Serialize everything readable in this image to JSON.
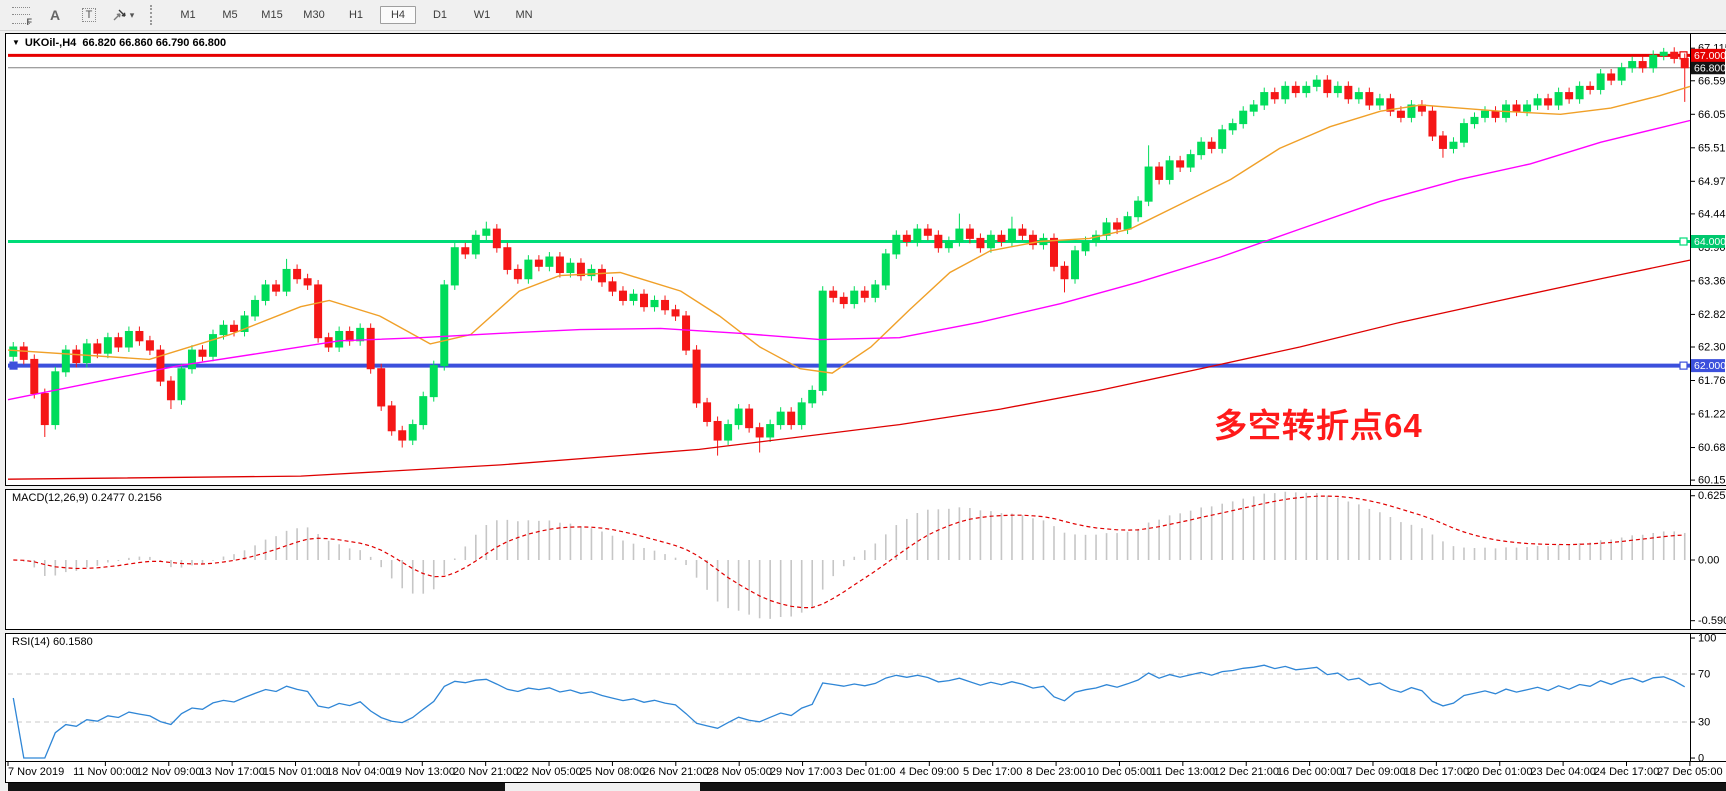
{
  "window": {
    "title": "UKOil-,H4  66.820 66.860 66.790 66.800",
    "dropdown_glyph": "▼"
  },
  "toolbar": {
    "tools": [
      {
        "id": "fibonacci-retracement",
        "glyph": "F"
      },
      {
        "id": "text-label",
        "glyph": "A"
      },
      {
        "id": "text",
        "glyph": "T"
      },
      {
        "id": "arrows",
        "glyph": "▾"
      }
    ],
    "timeframes": [
      "M1",
      "M5",
      "M15",
      "M30",
      "H1",
      "H4",
      "D1",
      "W1",
      "MN"
    ],
    "active_timeframe": "H4"
  },
  "indicators": {
    "macd": {
      "label": "MACD(12,26,9) 0.2477 0.2156"
    },
    "rsi": {
      "label": "RSI(14) 60.1580"
    }
  },
  "chart_data": [
    {
      "type": "candlestick",
      "symbol": "UKOil-",
      "timeframe": "H4",
      "ohlc_current": {
        "open": 66.82,
        "high": 66.86,
        "low": 66.79,
        "close": 66.8
      },
      "ylim": [
        60.06,
        67.36
      ],
      "axis_ticks": [
        "67.115",
        "66.590",
        "66.050",
        "65.510",
        "64.970",
        "64.445",
        "63.905",
        "63.365",
        "62.825",
        "62.300",
        "61.760",
        "61.220",
        "60.680",
        "60.155"
      ],
      "x_labels": [
        "7 Nov 2019",
        "11 Nov 00:00",
        "12 Nov 09:00",
        "13 Nov 17:00",
        "15 Nov 01:00",
        "18 Nov 04:00",
        "19 Nov 13:00",
        "20 Nov 21:00",
        "22 Nov 05:00",
        "25 Nov 08:00",
        "26 Nov 21:00",
        "28 Nov 05:00",
        "29 Nov 17:00",
        "3 Dec 01:00",
        "4 Dec 09:00",
        "5 Dec 17:00",
        "8 Dec 23:00",
        "10 Dec 05:00",
        "11 Dec 13:00",
        "12 Dec 21:00",
        "16 Dec 00:00",
        "17 Dec 09:00",
        "18 Dec 17:00",
        "20 Dec 01:00",
        "23 Dec 04:00",
        "24 Dec 17:00",
        "27 Dec 05:00"
      ],
      "closes": [
        62.3,
        62.1,
        61.55,
        61.05,
        61.9,
        62.25,
        62.05,
        62.35,
        62.2,
        62.45,
        62.3,
        62.55,
        62.4,
        62.25,
        61.75,
        61.45,
        61.95,
        62.25,
        62.15,
        62.5,
        62.65,
        62.55,
        62.8,
        63.05,
        63.3,
        63.2,
        63.55,
        63.4,
        63.3,
        62.45,
        62.3,
        62.55,
        62.4,
        62.6,
        61.95,
        61.35,
        60.95,
        60.8,
        61.05,
        61.5,
        62.0,
        63.3,
        63.9,
        63.8,
        64.1,
        64.2,
        63.9,
        63.55,
        63.4,
        63.7,
        63.6,
        63.75,
        63.5,
        63.65,
        63.45,
        63.55,
        63.35,
        63.2,
        63.05,
        63.15,
        62.95,
        63.05,
        62.9,
        62.8,
        62.25,
        61.4,
        61.1,
        60.8,
        61.05,
        61.3,
        61.0,
        60.85,
        61.05,
        61.25,
        61.05,
        61.4,
        61.6,
        63.2,
        63.1,
        63.0,
        63.2,
        63.1,
        63.3,
        63.8,
        64.1,
        64.0,
        64.2,
        64.1,
        63.9,
        64.0,
        64.2,
        64.05,
        63.9,
        64.1,
        64.0,
        64.2,
        64.1,
        63.95,
        64.05,
        63.6,
        63.4,
        63.85,
        64.0,
        64.1,
        64.3,
        64.2,
        64.4,
        64.65,
        65.2,
        65.0,
        65.3,
        65.2,
        65.4,
        65.6,
        65.5,
        65.8,
        65.9,
        66.1,
        66.2,
        66.4,
        66.3,
        66.5,
        66.4,
        66.5,
        66.6,
        66.4,
        66.5,
        66.3,
        66.4,
        66.2,
        66.3,
        66.1,
        66.0,
        66.2,
        66.1,
        65.7,
        65.5,
        65.6,
        65.9,
        66.0,
        66.1,
        66.0,
        66.2,
        66.1,
        66.2,
        66.3,
        66.2,
        66.4,
        66.3,
        66.5,
        66.45,
        66.7,
        66.6,
        66.8,
        66.9,
        66.8,
        67.0,
        67.05,
        66.95,
        66.8
      ],
      "default_wick": 0.08,
      "wick_overrides": {
        "3": [
          null,
          60.85
        ],
        "15": [
          null,
          61.3
        ],
        "26": [
          63.72,
          null
        ],
        "37": [
          null,
          60.68
        ],
        "45": [
          64.32,
          null
        ],
        "67": [
          null,
          60.55
        ],
        "71": [
          null,
          60.6
        ],
        "90": [
          64.45,
          null
        ],
        "95": [
          64.4,
          null
        ],
        "100": [
          null,
          63.18
        ],
        "108": [
          65.55,
          null
        ],
        "124": [
          66.68,
          null
        ],
        "136": [
          null,
          65.35
        ],
        "157": [
          67.12,
          null
        ],
        "159": [
          null,
          66.25
        ]
      },
      "bull_color": "#00DC5A",
      "bear_color": "#F51717",
      "moving_averages": [
        {
          "name": "ma-fast-orange",
          "color": "#F0A028",
          "width": 1.4,
          "points": [
            [
              0,
              62.25
            ],
            [
              0.084,
              62.1
            ],
            [
              0.132,
              62.5
            ],
            [
              0.174,
              62.95
            ],
            [
              0.191,
              63.05
            ],
            [
              0.221,
              62.8
            ],
            [
              0.251,
              62.35
            ],
            [
              0.275,
              62.5
            ],
            [
              0.304,
              63.2
            ],
            [
              0.328,
              63.45
            ],
            [
              0.364,
              63.5
            ],
            [
              0.4,
              63.2
            ],
            [
              0.423,
              62.8
            ],
            [
              0.447,
              62.3
            ],
            [
              0.471,
              61.95
            ],
            [
              0.49,
              61.88
            ],
            [
              0.513,
              62.3
            ],
            [
              0.536,
              62.9
            ],
            [
              0.56,
              63.5
            ],
            [
              0.584,
              63.85
            ],
            [
              0.613,
              64.0
            ],
            [
              0.643,
              64.05
            ],
            [
              0.667,
              64.2
            ],
            [
              0.697,
              64.6
            ],
            [
              0.727,
              65.0
            ],
            [
              0.756,
              65.5
            ],
            [
              0.786,
              65.85
            ],
            [
              0.816,
              66.1
            ],
            [
              0.84,
              66.2
            ],
            [
              0.863,
              66.15
            ],
            [
              0.887,
              66.1
            ],
            [
              0.923,
              66.05
            ],
            [
              0.953,
              66.15
            ],
            [
              0.982,
              66.35
            ],
            [
              1,
              66.5
            ]
          ]
        },
        {
          "name": "ma-mid-magenta",
          "color": "#FF00FF",
          "width": 1.4,
          "points": [
            [
              0,
              61.45
            ],
            [
              0.055,
              61.75
            ],
            [
              0.102,
              62.0
            ],
            [
              0.15,
              62.2
            ],
            [
              0.197,
              62.4
            ],
            [
              0.245,
              62.45
            ],
            [
              0.293,
              62.52
            ],
            [
              0.34,
              62.58
            ],
            [
              0.388,
              62.6
            ],
            [
              0.435,
              62.52
            ],
            [
              0.483,
              62.42
            ],
            [
              0.53,
              62.45
            ],
            [
              0.578,
              62.7
            ],
            [
              0.626,
              63.0
            ],
            [
              0.673,
              63.35
            ],
            [
              0.721,
              63.75
            ],
            [
              0.768,
              64.2
            ],
            [
              0.816,
              64.65
            ],
            [
              0.863,
              65.0
            ],
            [
              0.905,
              65.25
            ],
            [
              0.947,
              65.6
            ],
            [
              1,
              65.95
            ]
          ]
        },
        {
          "name": "ma-slow-red",
          "color": "#DE0000",
          "width": 1.3,
          "points": [
            [
              0,
              60.17
            ],
            [
              0.174,
              60.22
            ],
            [
              0.293,
              60.4
            ],
            [
              0.411,
              60.65
            ],
            [
              0.53,
              61.05
            ],
            [
              0.59,
              61.3
            ],
            [
              0.649,
              61.6
            ],
            [
              0.709,
              61.95
            ],
            [
              0.768,
              62.3
            ],
            [
              0.828,
              62.7
            ],
            [
              0.887,
              63.05
            ],
            [
              0.947,
              63.4
            ],
            [
              1,
              63.7
            ]
          ]
        }
      ],
      "hlines": [
        {
          "name": "bid-price-line",
          "price": 66.8,
          "color": "#808080",
          "width": 1,
          "tag": "66.800",
          "tag_bg": "#141414",
          "under": true,
          "handles": []
        },
        {
          "name": "resistance-line-67",
          "price": 67.0,
          "color": "#E60000",
          "width": 3,
          "tag": "67.000",
          "tag_bg": "#E60000",
          "under": false,
          "handles": [
            "right"
          ]
        },
        {
          "name": "pivot-line-64",
          "price": 64.0,
          "color": "#00DC78",
          "width": 3,
          "tag": "64.000",
          "tag_bg": "#00C86E",
          "under": false,
          "handles": [
            "right"
          ]
        },
        {
          "name": "support-line-62",
          "price": 62.0,
          "color": "#3C50DC",
          "width": 4,
          "tag": "62.000",
          "tag_bg": "#3C50DC",
          "under": false,
          "handles": [
            "left",
            "right"
          ]
        }
      ],
      "annotation": "多空转折点64",
      "annotation_color": "#FF1A1A"
    },
    {
      "type": "macd",
      "params": [
        12,
        26,
        9
      ],
      "values": [
        0.2477,
        0.2156
      ],
      "ylim": [
        -0.681,
        0.691
      ],
      "axis_ticks": [
        "0.6255",
        "0.00",
        "-0.5903"
      ],
      "histogram_color": "#C6C6C6",
      "signal_color": "#E00000",
      "derived_from": "closes"
    },
    {
      "type": "line",
      "name": "RSI",
      "period": 14,
      "value": 60.158,
      "ylim": [
        -3.3,
        104.2
      ],
      "axis_ticks": [
        "100",
        "70",
        "30",
        "0"
      ],
      "levels": [
        70,
        30
      ],
      "level_color": "#C8C8C8",
      "line_color": "#2F86D6",
      "derived_from": "closes"
    }
  ]
}
